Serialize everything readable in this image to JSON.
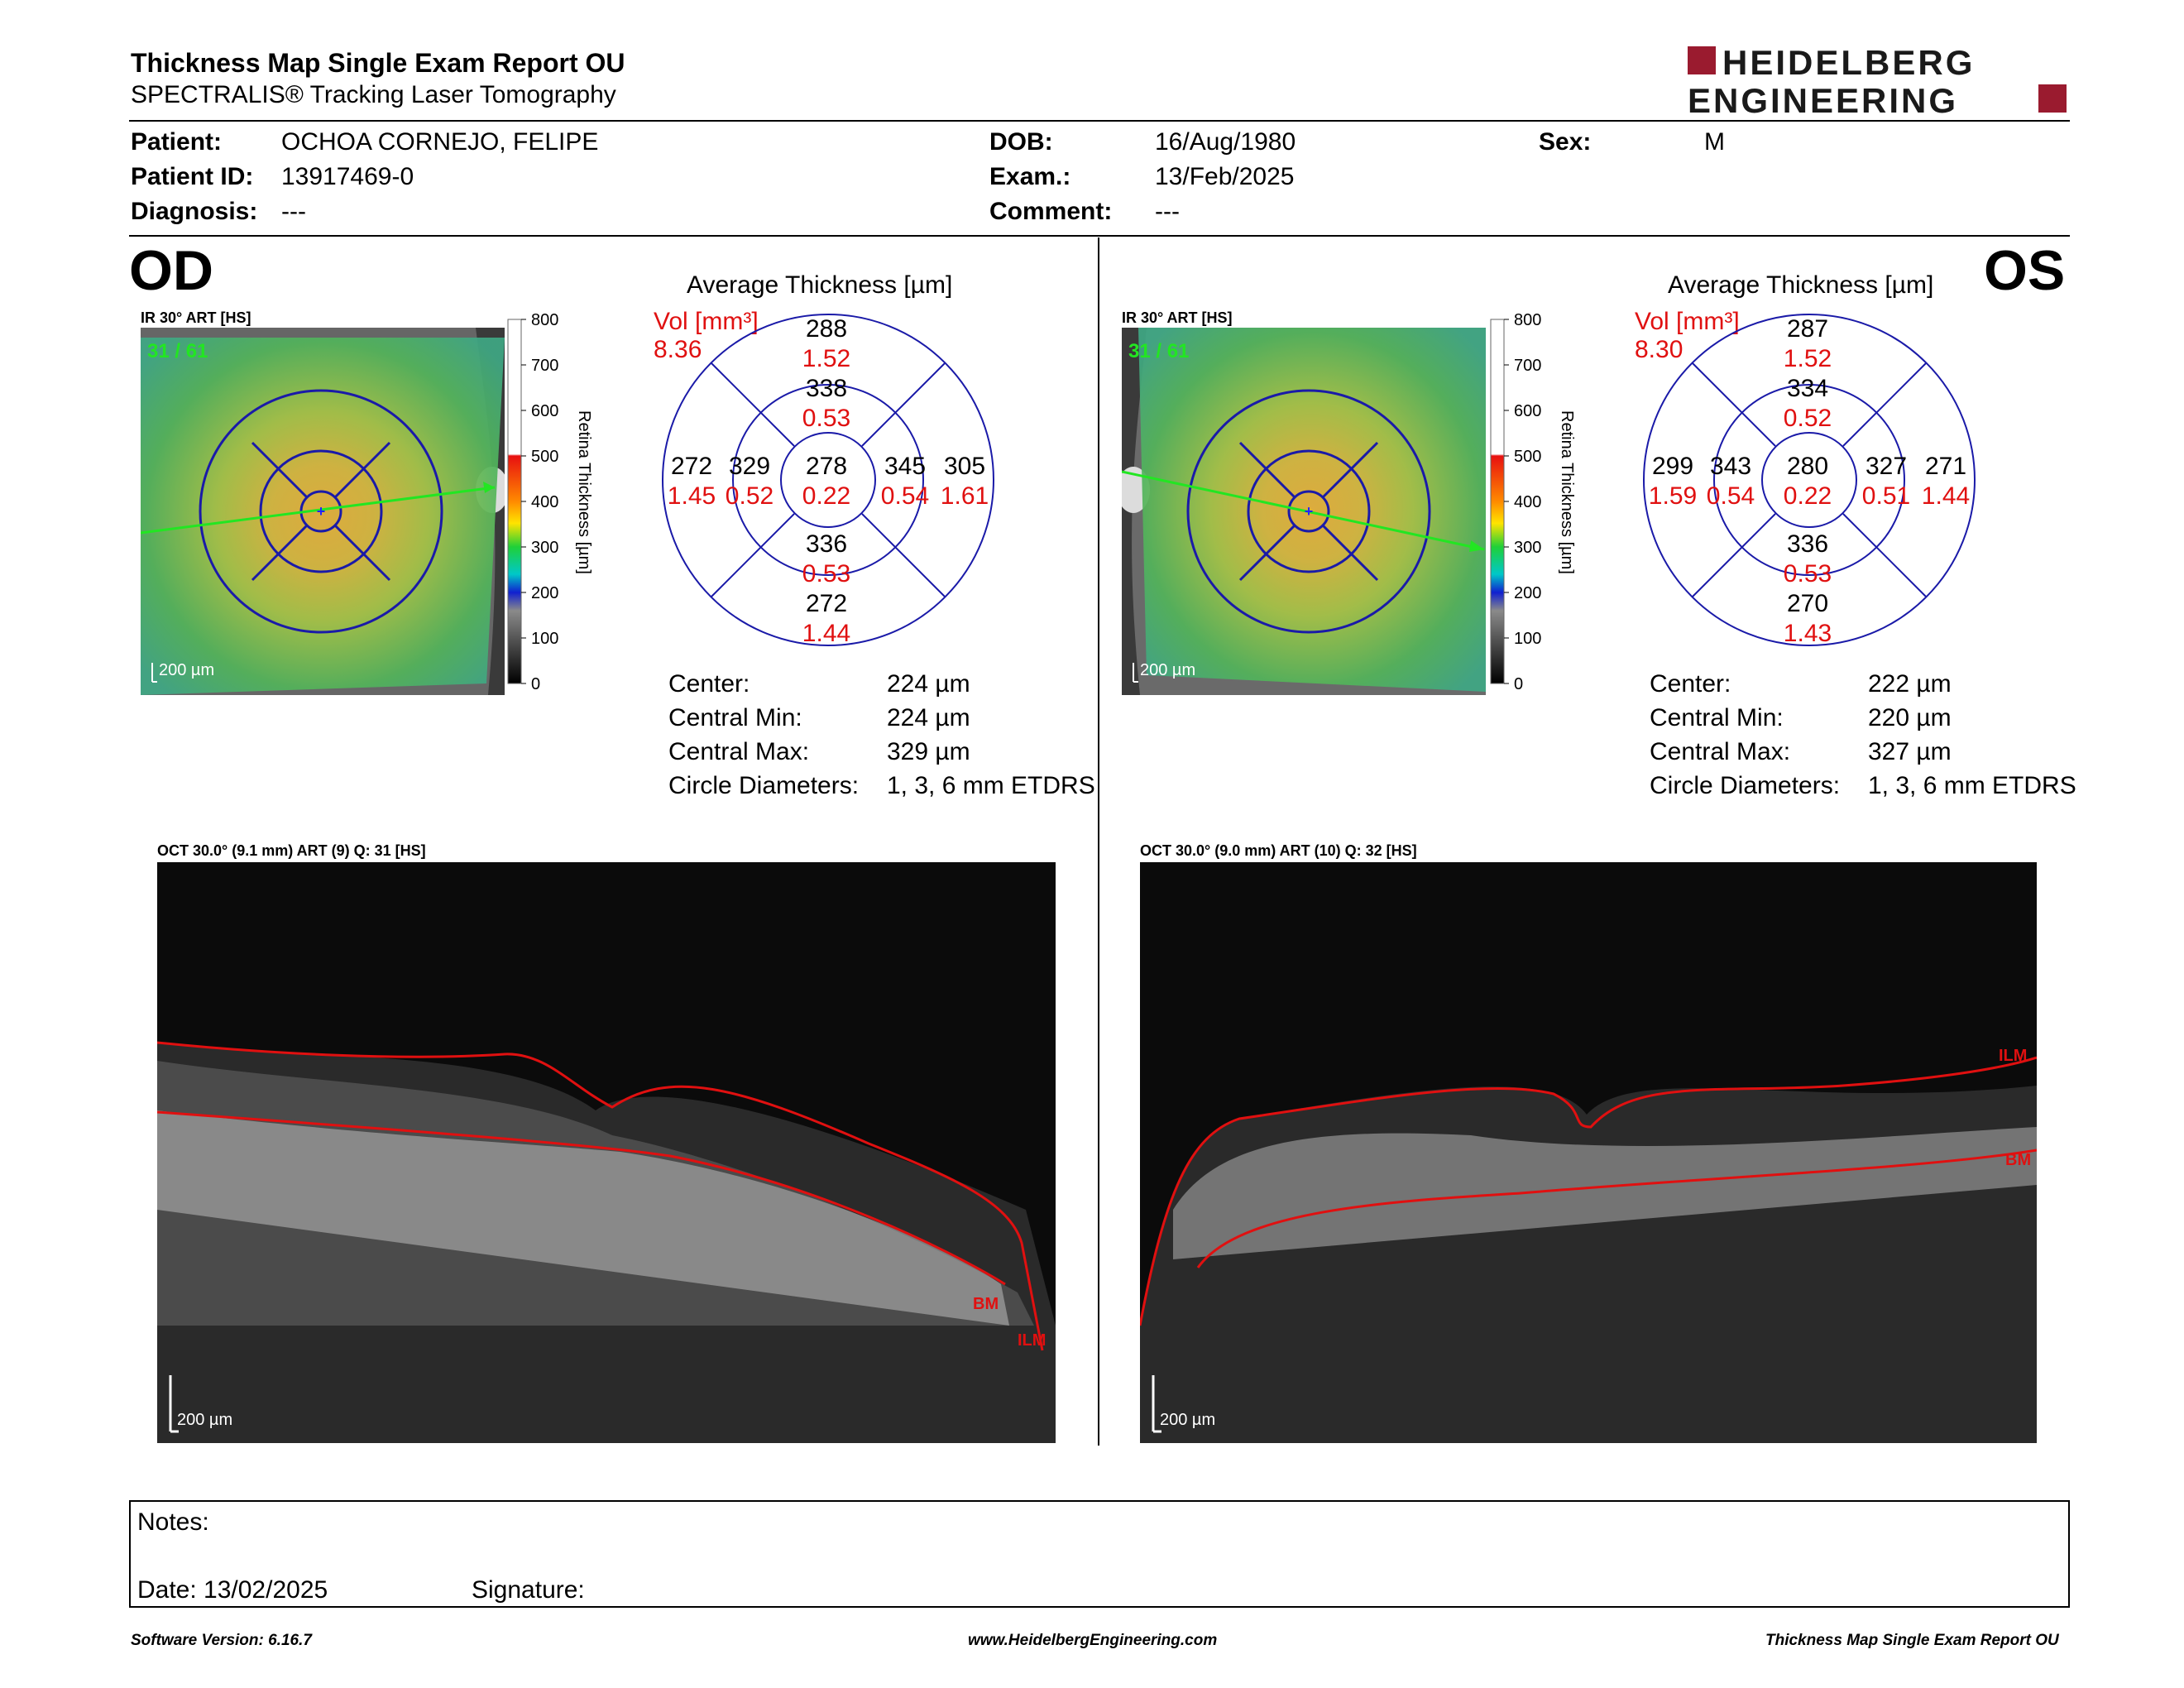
{
  "report": {
    "title": "Thickness Map Single Exam Report OU",
    "subtitle": "SPECTRALIS® Tracking Laser Tomography",
    "brand_line1": "HEIDELBERG",
    "brand_line2": "ENGINEERING",
    "brand_color": "#9a1b2f"
  },
  "patient": {
    "patient_label": "Patient:",
    "patient_value": "OCHOA CORNEJO, FELIPE",
    "id_label": "Patient ID:",
    "id_value": "13917469-0",
    "diagnosis_label": "Diagnosis:",
    "diagnosis_value": "---",
    "dob_label": "DOB:",
    "dob_value": "16/Aug/1980",
    "exam_label": "Exam.:",
    "exam_value": "13/Feb/2025",
    "comment_label": "Comment:",
    "comment_value": "---",
    "sex_label": "Sex:",
    "sex_value": "M"
  },
  "od": {
    "eye": "OD",
    "ir_caption": "IR 30° ART [HS]",
    "frame_label": "31 / 61",
    "scale_label": "200 µm",
    "avg_title": "Average Thickness [µm]",
    "vol_label": "Vol [mm³]",
    "vol_total": "8.36",
    "sectors": {
      "center": {
        "thick": "278",
        "vol": "0.22"
      },
      "inner_sup": {
        "thick": "338",
        "vol": "0.53"
      },
      "inner_inf": {
        "thick": "336",
        "vol": "0.53"
      },
      "inner_left": {
        "thick": "329",
        "vol": "0.52"
      },
      "inner_right": {
        "thick": "345",
        "vol": "0.54"
      },
      "outer_sup": {
        "thick": "288",
        "vol": "1.52"
      },
      "outer_inf": {
        "thick": "272",
        "vol": "1.44"
      },
      "outer_left": {
        "thick": "272",
        "vol": "1.45"
      },
      "outer_right": {
        "thick": "305",
        "vol": "1.61"
      }
    },
    "stats": [
      {
        "label": "Center:",
        "value": "224 µm"
      },
      {
        "label": "Central Min:",
        "value": "224 µm"
      },
      {
        "label": "Central Max:",
        "value": "329 µm"
      },
      {
        "label": "Circle Diameters:",
        "value": "1, 3, 6 mm ETDRS"
      }
    ],
    "oct_caption": "OCT 30.0° (9.1 mm) ART (9) Q: 31 [HS]",
    "oct_scale": "200 µm",
    "ilm_label": "ILM",
    "bm_label": "BM"
  },
  "os": {
    "eye": "OS",
    "ir_caption": "IR 30° ART [HS]",
    "frame_label": "31 / 61",
    "scale_label": "200 µm",
    "avg_title": "Average Thickness [µm]",
    "vol_label": "Vol [mm³]",
    "vol_total": "8.30",
    "sectors": {
      "center": {
        "thick": "280",
        "vol": "0.22"
      },
      "inner_sup": {
        "thick": "334",
        "vol": "0.52"
      },
      "inner_inf": {
        "thick": "336",
        "vol": "0.53"
      },
      "inner_left": {
        "thick": "343",
        "vol": "0.54"
      },
      "inner_right": {
        "thick": "327",
        "vol": "0.51"
      },
      "outer_sup": {
        "thick": "287",
        "vol": "1.52"
      },
      "outer_inf": {
        "thick": "270",
        "vol": "1.43"
      },
      "outer_left": {
        "thick": "299",
        "vol": "1.59"
      },
      "outer_right": {
        "thick": "271",
        "vol": "1.44"
      }
    },
    "stats": [
      {
        "label": "Center:",
        "value": "222 µm"
      },
      {
        "label": "Central Min:",
        "value": "220 µm"
      },
      {
        "label": "Central Max:",
        "value": "327 µm"
      },
      {
        "label": "Circle Diameters:",
        "value": "1, 3, 6 mm ETDRS"
      }
    ],
    "oct_caption": "OCT 30.0° (9.0 mm) ART (10) Q: 32 [HS]",
    "oct_scale": "200 µm",
    "ilm_label": "ILM",
    "bm_label": "BM"
  },
  "colorbar": {
    "ticks": [
      "800",
      "700",
      "600",
      "500",
      "400",
      "300",
      "200",
      "100",
      "0"
    ],
    "label": "Retina Thickness [µm]"
  },
  "notes": {
    "notes_label": "Notes:",
    "date_label": "Date: 13/02/2025",
    "signature_label": "Signature:"
  },
  "footer": {
    "software": "Software Version: 6.16.7",
    "website": "www.HeidelbergEngineering.com",
    "report_name": "Thickness Map Single Exam Report OU"
  }
}
